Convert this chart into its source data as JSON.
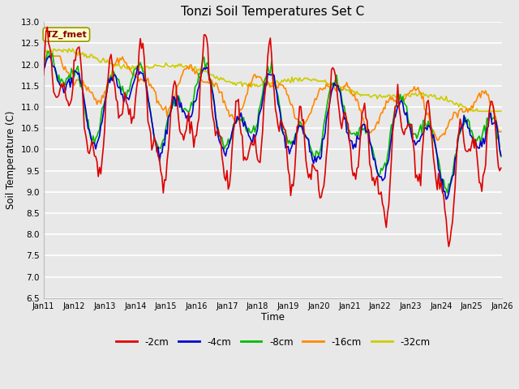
{
  "title": "Tonzi Soil Temperatures Set C",
  "xlabel": "Time",
  "ylabel": "Soil Temperature (C)",
  "ylim": [
    6.5,
    13.0
  ],
  "yticks": [
    6.5,
    7.0,
    7.5,
    8.0,
    8.5,
    9.0,
    9.5,
    10.0,
    10.5,
    11.0,
    11.5,
    12.0,
    12.5,
    13.0
  ],
  "bg_color": "#e8e8e8",
  "grid_color": "#ffffff",
  "colors": {
    "2cm": "#dd0000",
    "4cm": "#0000cc",
    "8cm": "#00bb00",
    "16cm": "#ff8800",
    "32cm": "#cccc00"
  },
  "box_facecolor": "#ffffcc",
  "box_edgecolor": "#999900",
  "tz_text_color": "#880000",
  "xtick_labels": [
    "Jan 11",
    "Jan 12",
    "Jan 13",
    "Jan 14",
    "Jan 15",
    "Jan 16",
    "Jan 17",
    "Jan 18",
    "Jan 19",
    "Jan 20",
    "Jan 21",
    "Jan 22",
    "Jan 23",
    "Jan 24",
    "Jan 25",
    "Jan 26"
  ]
}
